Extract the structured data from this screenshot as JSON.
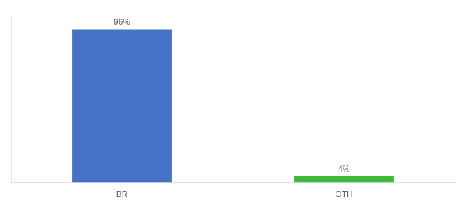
{
  "chart_data": {
    "type": "bar",
    "categories": [
      "BR",
      "OTH"
    ],
    "values": [
      96,
      4
    ],
    "value_labels": [
      "96%",
      "4%"
    ],
    "colors": [
      "#4472c4",
      "#3dbb3d"
    ],
    "ylim": [
      0,
      104
    ],
    "grid": false,
    "data_labels": true,
    "tick_labels": "x"
  }
}
